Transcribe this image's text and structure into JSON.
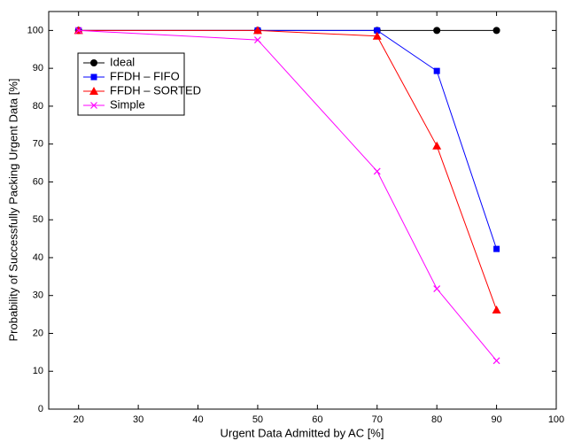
{
  "chart_data": {
    "type": "line",
    "x": [
      20,
      50,
      70,
      80,
      90
    ],
    "series": [
      {
        "name": "Ideal",
        "color": "#000000",
        "marker": "circle",
        "values": [
          100,
          100,
          100,
          100,
          100
        ]
      },
      {
        "name": "FFDH – FIFO",
        "color": "#0000ff",
        "marker": "square",
        "values": [
          100,
          100,
          100,
          89.3,
          42.3
        ]
      },
      {
        "name": "FFDH – SORTED",
        "color": "#ff0000",
        "marker": "triangle",
        "values": [
          100,
          100,
          98.5,
          69.5,
          26.2
        ]
      },
      {
        "name": "Simple",
        "color": "#ff00ff",
        "marker": "x",
        "values": [
          100,
          97.5,
          62.8,
          31.8,
          12.8
        ]
      }
    ],
    "x_label": "Urgent Data Admitted by AC [%]",
    "y_label": "Probability of Successfully Packing Urgent Data [%]",
    "xlim": [
      15,
      100
    ],
    "ylim": [
      0,
      105
    ],
    "xticks": [
      20,
      30,
      40,
      50,
      60,
      70,
      80,
      90,
      100
    ],
    "yticks": [
      0,
      10,
      20,
      30,
      40,
      50,
      60,
      70,
      80,
      90,
      100
    ],
    "grid": false,
    "legend": "upper left"
  }
}
